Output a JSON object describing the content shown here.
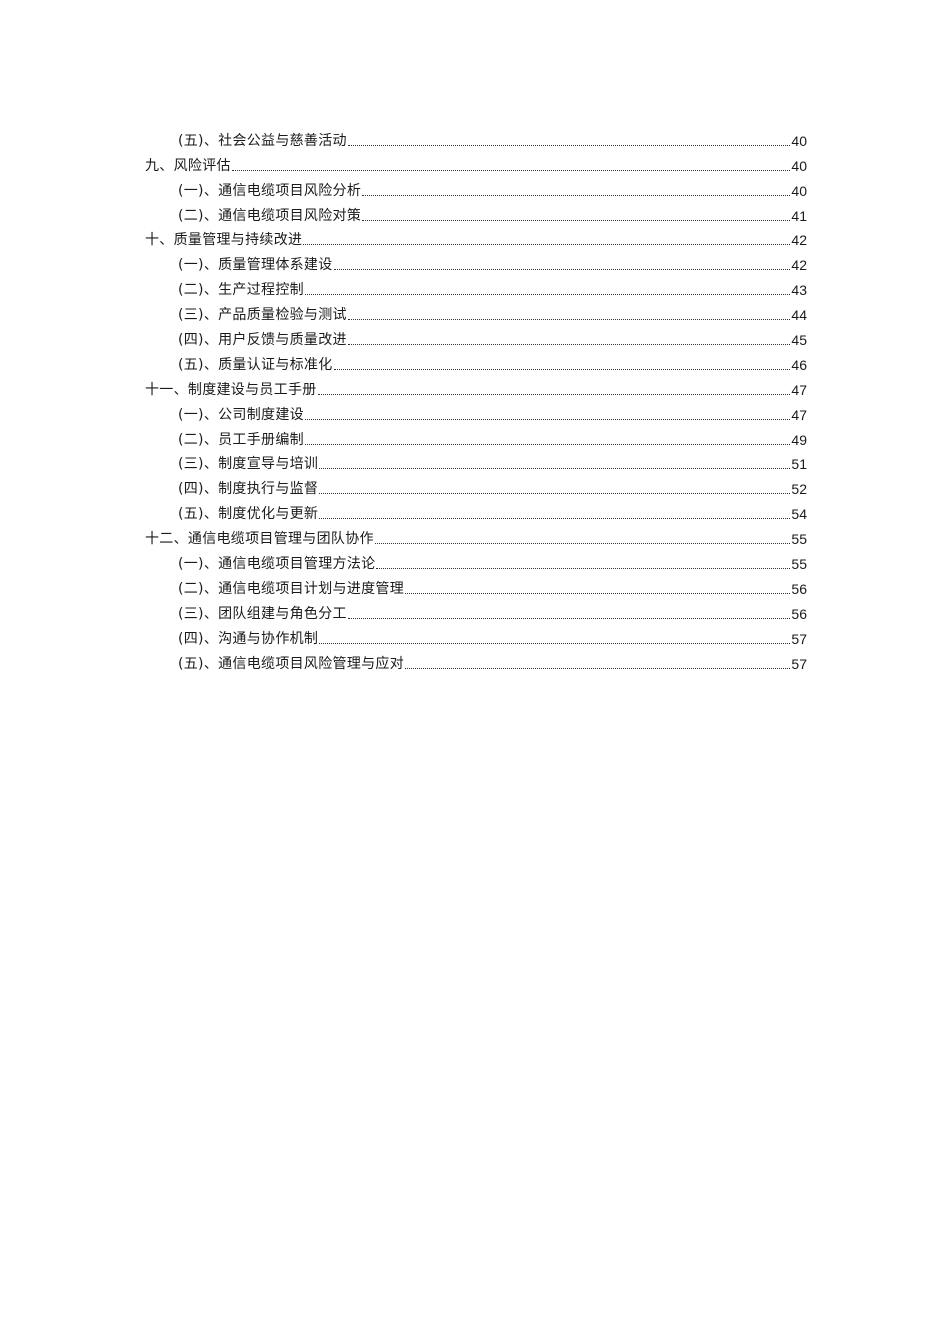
{
  "toc": [
    {
      "level": 2,
      "title": "(五)、社会公益与慈善活动",
      "page": "40"
    },
    {
      "level": 1,
      "title": "九、风险评估",
      "page": "40"
    },
    {
      "level": 2,
      "title": "(一)、通信电缆项目风险分析",
      "page": "40"
    },
    {
      "level": 2,
      "title": "(二)、通信电缆项目风险对策",
      "page": "41"
    },
    {
      "level": 1,
      "title": "十、质量管理与持续改进",
      "page": "42"
    },
    {
      "level": 2,
      "title": "(一)、质量管理体系建设",
      "page": "42"
    },
    {
      "level": 2,
      "title": "(二)、生产过程控制",
      "page": "43"
    },
    {
      "level": 2,
      "title": "(三)、产品质量检验与测试",
      "page": "44"
    },
    {
      "level": 2,
      "title": "(四)、用户反馈与质量改进",
      "page": "45"
    },
    {
      "level": 2,
      "title": "(五)、质量认证与标准化",
      "page": "46"
    },
    {
      "level": 1,
      "title": "十一、制度建设与员工手册",
      "page": "47"
    },
    {
      "level": 2,
      "title": "(一)、公司制度建设",
      "page": "47"
    },
    {
      "level": 2,
      "title": "(二)、员工手册编制",
      "page": "49"
    },
    {
      "level": 2,
      "title": "(三)、制度宣导与培训",
      "page": "51"
    },
    {
      "level": 2,
      "title": "(四)、制度执行与监督",
      "page": "52"
    },
    {
      "level": 2,
      "title": "(五)、制度优化与更新",
      "page": "54"
    },
    {
      "level": 1,
      "title": "十二、通信电缆项目管理与团队协作",
      "page": "55"
    },
    {
      "level": 2,
      "title": "(一)、通信电缆项目管理方法论",
      "page": "55"
    },
    {
      "level": 2,
      "title": "(二)、通信电缆项目计划与进度管理",
      "page": "56"
    },
    {
      "level": 2,
      "title": "(三)、团队组建与角色分工",
      "page": "56"
    },
    {
      "level": 2,
      "title": "(四)、沟通与协作机制",
      "page": "57"
    },
    {
      "level": 2,
      "title": "(五)、通信电缆项目风险管理与应对",
      "page": "57"
    }
  ]
}
